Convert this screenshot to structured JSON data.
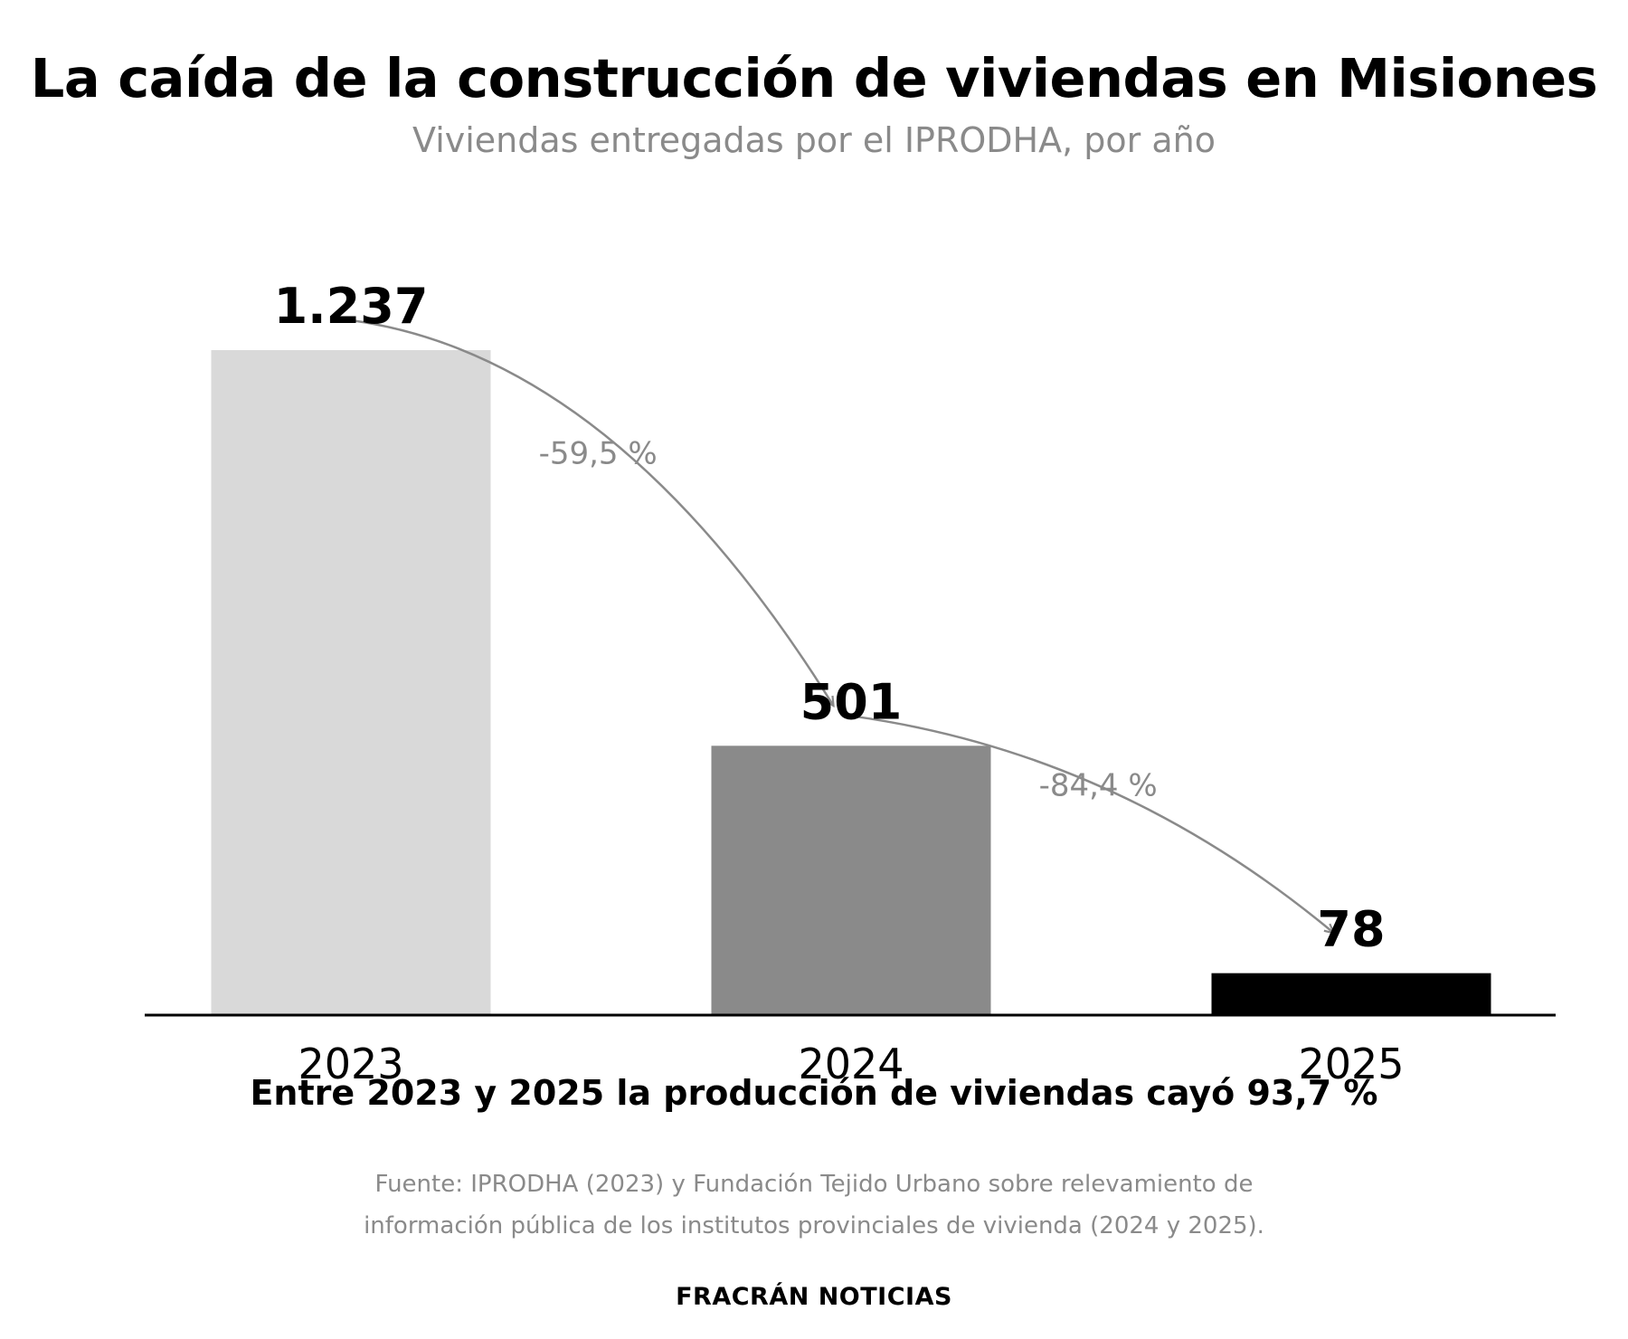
{
  "chart_data": {
    "type": "bar",
    "title": "La caída de la construcción de viviendas en Misiones",
    "subtitle": "Viviendas entregadas por el IPRODHA, por año",
    "categories": [
      "2023",
      "2024",
      "2025"
    ],
    "values": [
      1237,
      501,
      78
    ],
    "value_labels": [
      "1.237",
      "501",
      "78"
    ],
    "bar_colors": [
      "#d9d9d9",
      "#8a8a8a",
      "#000000"
    ],
    "annotations": [
      {
        "from": "2023",
        "to": "2024",
        "label": "-59,5 %"
      },
      {
        "from": "2024",
        "to": "2025",
        "label": "-84,4 %"
      }
    ],
    "ylim": [
      0,
      1237
    ],
    "grid": false,
    "xlabel": "",
    "ylabel": ""
  },
  "note": "Entre 2023 y 2025 la producción de viviendas cayó 93,7 %",
  "source_lines": [
    "Fuente: IPRODHA (2023) y Fundación Tejido Urbano sobre relevamiento de",
    "información pública de los institutos provinciales de vivienda (2024 y 2025)."
  ],
  "brand": "FRACRÁN NOTICIAS",
  "colors": {
    "annotation": "#8a8a8a",
    "axis": "#000000"
  }
}
